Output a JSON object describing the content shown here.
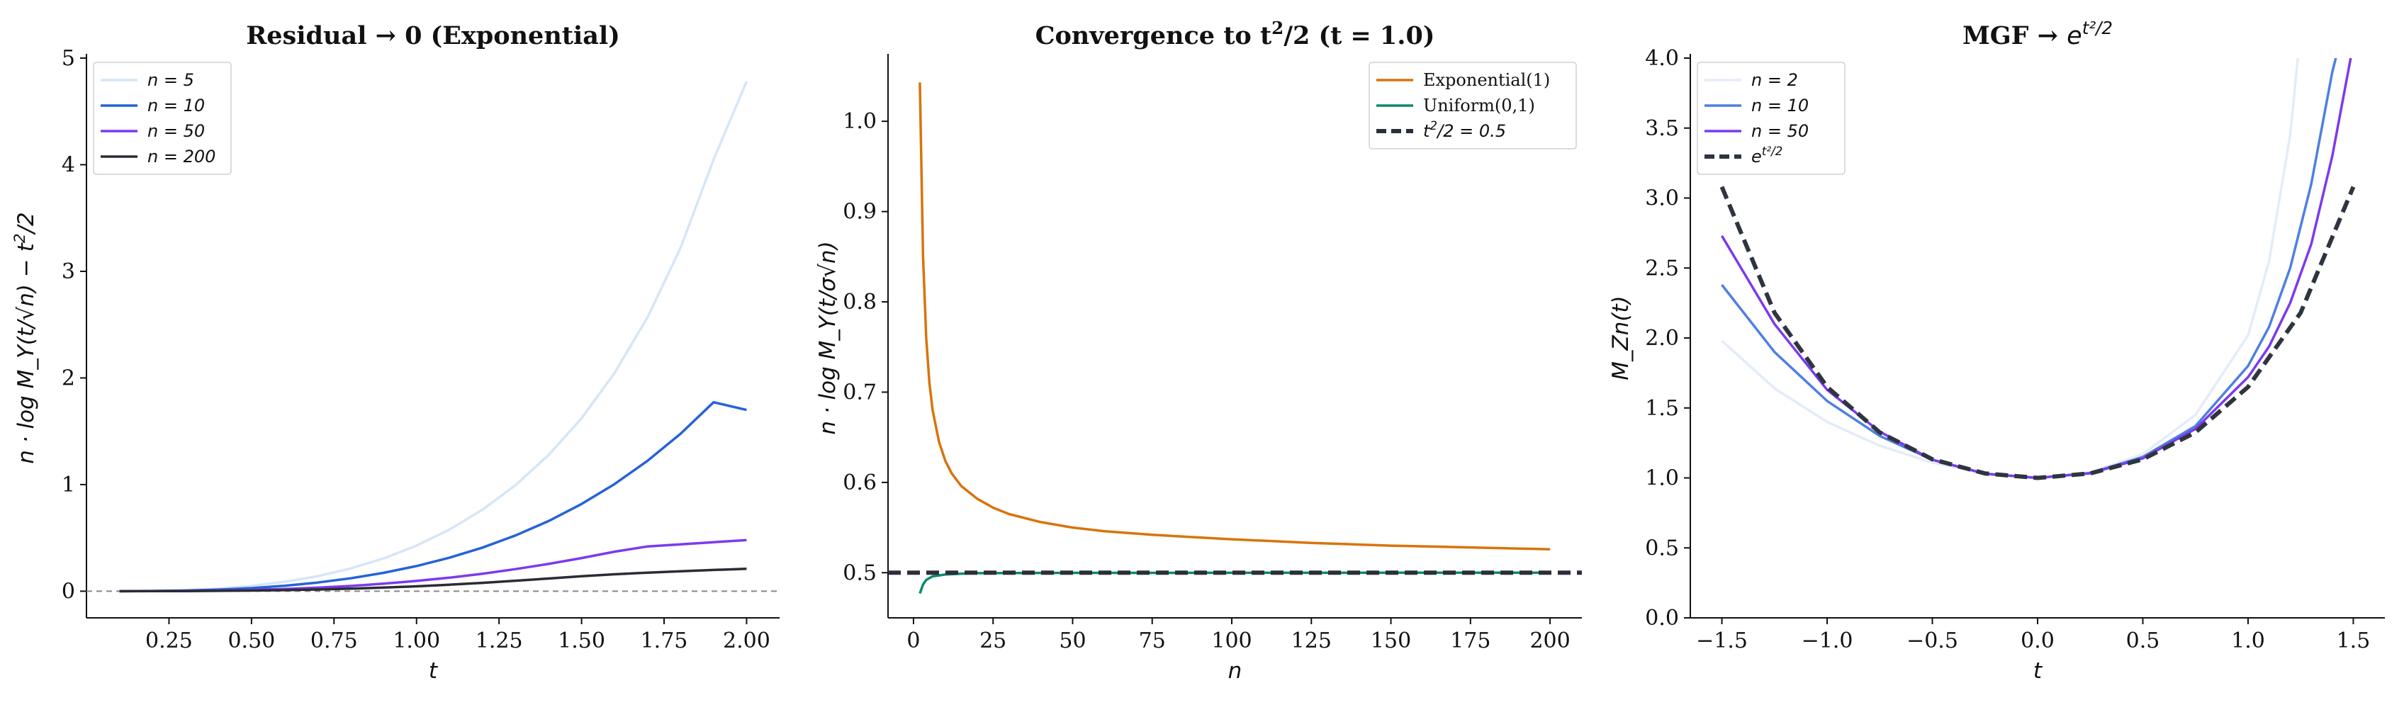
{
  "chart_data": [
    {
      "type": "line",
      "title": "Residual → 0 (Exponential)",
      "xlabel": "t",
      "ylabel": "n · log M_Y(t/√n) − t²/2",
      "xlim": [
        0.0,
        2.1
      ],
      "ylim": [
        -0.25,
        5.0
      ],
      "xticks": [
        0.25,
        0.5,
        0.75,
        1.0,
        1.25,
        1.5,
        1.75,
        2.0
      ],
      "xtick_labels": [
        "0.25",
        "0.50",
        "0.75",
        "1.00",
        "1.25",
        "1.50",
        "1.75",
        "2.00"
      ],
      "yticks": [
        0,
        1,
        2,
        3,
        4,
        5
      ],
      "ytick_labels": [
        "0",
        "1",
        "2",
        "3",
        "4",
        "5"
      ],
      "grid": false,
      "legend": "top-left",
      "reference_line": {
        "y": 0,
        "style": "dashed",
        "color": "#888888"
      },
      "series": [
        {
          "name": "n = 5",
          "color": "#d6e6f7",
          "x": [
            0.1,
            0.2,
            0.3,
            0.4,
            0.5,
            0.6,
            0.7,
            0.8,
            0.9,
            1.0,
            1.1,
            1.2,
            1.3,
            1.4,
            1.5,
            1.6,
            1.7,
            1.8,
            1.9,
            2.0
          ],
          "y": [
            0.0003,
            0.003,
            0.01,
            0.024,
            0.05,
            0.088,
            0.14,
            0.213,
            0.307,
            0.427,
            0.578,
            0.765,
            0.995,
            1.277,
            1.622,
            2.047,
            2.57,
            3.22,
            4.05,
            4.78
          ]
        },
        {
          "name": "n = 10",
          "color": "#2563d6",
          "x": [
            0.1,
            0.2,
            0.3,
            0.4,
            0.5,
            0.6,
            0.7,
            0.8,
            0.9,
            1.0,
            1.1,
            1.2,
            1.3,
            1.4,
            1.5,
            1.6,
            1.7,
            1.8,
            1.9,
            2.0
          ],
          "y": [
            0.0002,
            0.002,
            0.006,
            0.015,
            0.029,
            0.051,
            0.081,
            0.121,
            0.172,
            0.236,
            0.314,
            0.409,
            0.523,
            0.658,
            0.818,
            1.005,
            1.223,
            1.477,
            1.772,
            1.7
          ]
        },
        {
          "name": "n = 50",
          "color": "#7c3aed",
          "x": [
            0.1,
            0.2,
            0.3,
            0.4,
            0.5,
            0.6,
            0.7,
            0.8,
            0.9,
            1.0,
            1.1,
            1.2,
            1.3,
            1.4,
            1.5,
            1.6,
            1.7,
            1.8,
            1.9,
            2.0
          ],
          "y": [
            0.0001,
            0.0008,
            0.0026,
            0.006,
            0.012,
            0.021,
            0.033,
            0.049,
            0.07,
            0.096,
            0.127,
            0.164,
            0.207,
            0.256,
            0.311,
            0.371,
            0.42,
            0.44,
            0.46,
            0.48
          ]
        },
        {
          "name": "n = 200",
          "color": "#2b2b35",
          "x": [
            0.1,
            0.2,
            0.3,
            0.4,
            0.5,
            0.6,
            0.7,
            0.8,
            0.9,
            1.0,
            1.1,
            1.2,
            1.3,
            1.4,
            1.5,
            1.6,
            1.7,
            1.8,
            1.9,
            2.0
          ],
          "y": [
            0.0,
            0.0004,
            0.0013,
            0.003,
            0.006,
            0.01,
            0.016,
            0.024,
            0.034,
            0.046,
            0.061,
            0.078,
            0.098,
            0.119,
            0.141,
            0.159,
            0.174,
            0.187,
            0.199,
            0.21
          ]
        }
      ]
    },
    {
      "type": "line",
      "title": "Convergence to t²/2 (t = 1.0)",
      "xlabel": "n",
      "ylabel": "n · log M_Y(t/σ√n)",
      "xlim": [
        -8,
        210
      ],
      "ylim": [
        0.45,
        1.07
      ],
      "xticks": [
        0,
        25,
        50,
        75,
        100,
        125,
        150,
        175,
        200
      ],
      "xtick_labels": [
        "0",
        "25",
        "50",
        "75",
        "100",
        "125",
        "150",
        "175",
        "200"
      ],
      "yticks": [
        0.5,
        0.6,
        0.7,
        0.8,
        0.9,
        1.0
      ],
      "ytick_labels": [
        "0.5",
        "0.6",
        "0.7",
        "0.8",
        "0.9",
        "1.0"
      ],
      "grid": false,
      "legend": "top-right",
      "series": [
        {
          "name": "Exponential(1)",
          "color": "#d9730d",
          "x": [
            2,
            3,
            4,
            5,
            6,
            8,
            10,
            12,
            15,
            20,
            25,
            30,
            40,
            50,
            60,
            75,
            100,
            125,
            150,
            175,
            200
          ],
          "y": [
            1.043,
            0.85,
            0.76,
            0.71,
            0.68,
            0.645,
            0.624,
            0.61,
            0.596,
            0.582,
            0.572,
            0.565,
            0.556,
            0.55,
            0.546,
            0.542,
            0.537,
            0.533,
            0.53,
            0.528,
            0.526
          ]
        },
        {
          "name": "Uniform(0,1)",
          "color": "#0b8a6a",
          "x": [
            2,
            3,
            4,
            5,
            6,
            8,
            10,
            15,
            20,
            30,
            50,
            100,
            150,
            200
          ],
          "y": [
            0.477,
            0.487,
            0.492,
            0.494,
            0.496,
            0.497,
            0.498,
            0.499,
            0.4995,
            0.4997,
            0.4998,
            0.4999,
            0.5,
            0.5
          ]
        },
        {
          "name": "t²/2 = 0.5",
          "color": "#2b2f3a",
          "style": "dashed",
          "x": [
            -8,
            210
          ],
          "y": [
            0.5,
            0.5
          ]
        }
      ]
    },
    {
      "type": "line",
      "title": "MGF → e^(t²/2)",
      "xlabel": "t",
      "ylabel": "M_Zn(t)",
      "xlim": [
        -1.65,
        1.65
      ],
      "ylim": [
        0.0,
        4.0
      ],
      "xticks": [
        -1.5,
        -1.0,
        -0.5,
        0.0,
        0.5,
        1.0,
        1.5
      ],
      "xtick_labels": [
        "−1.5",
        "−1.0",
        "−0.5",
        "0.0",
        "0.5",
        "1.0",
        "1.5"
      ],
      "yticks": [
        0.0,
        0.5,
        1.0,
        1.5,
        2.0,
        2.5,
        3.0,
        3.5,
        4.0
      ],
      "ytick_labels": [
        "0.0",
        "0.5",
        "1.0",
        "1.5",
        "2.0",
        "2.5",
        "3.0",
        "3.5",
        "4.0"
      ],
      "grid": false,
      "legend": "top-left",
      "series": [
        {
          "name": "n = 2",
          "color": "#e3ecf8",
          "x": [
            -1.5,
            -1.25,
            -1.0,
            -0.75,
            -0.5,
            -0.25,
            0.0,
            0.25,
            0.5,
            0.75,
            1.0,
            1.1,
            1.2,
            1.25
          ],
          "y": [
            1.98,
            1.64,
            1.4,
            1.23,
            1.11,
            1.03,
            1.0,
            1.04,
            1.17,
            1.45,
            2.02,
            2.55,
            3.45,
            4.2
          ]
        },
        {
          "name": "n = 10",
          "color": "#4f7fe0",
          "x": [
            -1.5,
            -1.25,
            -1.0,
            -0.75,
            -0.5,
            -0.25,
            0.0,
            0.25,
            0.5,
            0.75,
            1.0,
            1.1,
            1.2,
            1.3,
            1.4,
            1.45
          ],
          "y": [
            2.38,
            1.9,
            1.55,
            1.3,
            1.13,
            1.03,
            1.0,
            1.035,
            1.15,
            1.37,
            1.8,
            2.08,
            2.5,
            3.1,
            3.9,
            4.2
          ]
        },
        {
          "name": "n = 50",
          "color": "#7c3aed",
          "x": [
            -1.5,
            -1.25,
            -1.0,
            -0.75,
            -0.5,
            -0.25,
            0.0,
            0.25,
            0.5,
            0.75,
            1.0,
            1.1,
            1.2,
            1.3,
            1.4,
            1.5
          ],
          "y": [
            2.73,
            2.1,
            1.63,
            1.33,
            1.13,
            1.03,
            1.0,
            1.033,
            1.14,
            1.35,
            1.72,
            1.94,
            2.25,
            2.67,
            3.3,
            4.1
          ]
        },
        {
          "name": "e^(t²/2)",
          "color": "#2e3440",
          "style": "dashed",
          "x": [
            -1.5,
            -1.25,
            -1.0,
            -0.75,
            -0.5,
            -0.25,
            0.0,
            0.25,
            0.5,
            0.75,
            1.0,
            1.25,
            1.5
          ],
          "y": [
            3.08,
            2.18,
            1.65,
            1.325,
            1.133,
            1.032,
            1.0,
            1.032,
            1.133,
            1.325,
            1.65,
            2.18,
            3.08
          ]
        }
      ]
    }
  ]
}
